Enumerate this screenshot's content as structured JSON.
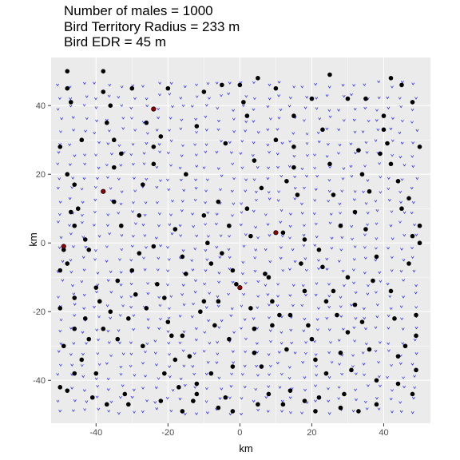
{
  "chart_data": {
    "type": "scatter",
    "title_lines": [
      "Number of males = 1000",
      "Bird Territory Radius = 233 m",
      "Bird EDR = 45 m"
    ],
    "xlabel": "km",
    "ylabel": "km",
    "xlim": [
      -52.5,
      53
    ],
    "ylim": [
      -52.5,
      54
    ],
    "xticks": [
      -40,
      -20,
      0,
      20,
      40
    ],
    "yticks": [
      -40,
      -20,
      0,
      20,
      40
    ],
    "xtick_labels": [
      "-40",
      "-20",
      "0",
      "20",
      "40"
    ],
    "ytick_labels": [
      "-40",
      "-20",
      "0",
      "20",
      "40"
    ],
    "grid": true,
    "background": "#ebebeb",
    "grid_color": "#ffffff",
    "colors": {
      "territories": "#000000",
      "detected": "#8b0000",
      "observers": "#0000ff"
    },
    "series": [
      {
        "marker": "filled-circle",
        "color": "#000000",
        "points": [
          [
            -48,
            50
          ],
          [
            -48,
            45
          ],
          [
            -47,
            41
          ],
          [
            -50,
            28
          ],
          [
            -48,
            20
          ],
          [
            -46,
            17
          ],
          [
            -47,
            9
          ],
          [
            -46,
            5
          ],
          [
            -49,
            -2
          ],
          [
            -50,
            -8
          ],
          [
            -48,
            -6
          ],
          [
            -46,
            -16
          ],
          [
            -50,
            -19
          ],
          [
            -49,
            -30
          ],
          [
            -50,
            -42
          ],
          [
            -48,
            -43
          ],
          [
            -46,
            -38
          ],
          [
            -44,
            -34
          ],
          [
            -43,
            -22
          ],
          [
            -42,
            -28
          ],
          [
            -43,
            1
          ],
          [
            -42,
            -2
          ],
          [
            -40,
            -13
          ],
          [
            -39,
            -17
          ],
          [
            -40,
            -38
          ],
          [
            -38,
            -25
          ],
          [
            -37,
            -47
          ],
          [
            -38,
            15
          ],
          [
            -37,
            35
          ],
          [
            -36,
            40
          ],
          [
            -38,
            50
          ],
          [
            -38,
            44
          ],
          [
            -35,
            30
          ],
          [
            -35,
            22
          ],
          [
            -34,
            -11
          ],
          [
            -34,
            -28
          ],
          [
            -31,
            -22
          ],
          [
            -31,
            -47
          ],
          [
            -30,
            -8
          ],
          [
            -29,
            -15
          ],
          [
            -28,
            -3
          ],
          [
            -27,
            17
          ],
          [
            -27,
            -30
          ],
          [
            -26,
            35
          ],
          [
            -24,
            39
          ],
          [
            -24,
            28
          ],
          [
            -24,
            23
          ],
          [
            -24,
            -1
          ],
          [
            -23,
            -12
          ],
          [
            -21,
            -16
          ],
          [
            -21,
            -38
          ],
          [
            -20,
            -23
          ],
          [
            -19,
            -27
          ],
          [
            -18,
            -34
          ],
          [
            -17,
            -42
          ],
          [
            -16,
            -49
          ],
          [
            -15,
            20
          ],
          [
            -15,
            -9
          ],
          [
            -14,
            -33
          ],
          [
            -13,
            -46
          ],
          [
            -12,
            -41
          ],
          [
            -11,
            -20
          ],
          [
            -10,
            8
          ],
          [
            -10,
            -17
          ],
          [
            -9,
            0
          ],
          [
            -8,
            -38
          ],
          [
            -7,
            -24
          ],
          [
            -6,
            -48
          ],
          [
            -5,
            -3
          ],
          [
            -4,
            -45
          ],
          [
            -3,
            -28
          ],
          [
            -2,
            -36
          ],
          [
            -2,
            -8
          ],
          [
            -1,
            -12
          ],
          [
            0,
            46
          ],
          [
            1,
            41
          ],
          [
            2,
            37
          ],
          [
            2,
            10
          ],
          [
            3,
            -19
          ],
          [
            4,
            -32
          ],
          [
            5,
            -47
          ],
          [
            6,
            -36
          ],
          [
            6,
            16
          ],
          [
            7,
            -9
          ],
          [
            8,
            -10
          ],
          [
            9,
            -17
          ],
          [
            9,
            -24
          ],
          [
            10,
            30
          ],
          [
            11,
            -21
          ],
          [
            12,
            -47
          ],
          [
            13,
            -31
          ],
          [
            14,
            -43
          ],
          [
            15,
            37
          ],
          [
            15,
            28
          ],
          [
            15,
            22
          ],
          [
            16,
            14
          ],
          [
            17,
            -6
          ],
          [
            18,
            -14
          ],
          [
            19,
            -24
          ],
          [
            20,
            -28
          ],
          [
            21,
            -34
          ],
          [
            21,
            -49
          ],
          [
            22,
            -45
          ],
          [
            23,
            -7
          ],
          [
            24,
            -38
          ],
          [
            25,
            49
          ],
          [
            25,
            23
          ],
          [
            26,
            14
          ],
          [
            27,
            -21
          ],
          [
            28,
            -32
          ],
          [
            29,
            -44
          ],
          [
            30,
            -26
          ],
          [
            31,
            -37
          ],
          [
            32,
            -18
          ],
          [
            33,
            -49
          ],
          [
            34,
            20
          ],
          [
            35,
            4
          ],
          [
            36,
            -31
          ],
          [
            37,
            -11
          ],
          [
            38,
            -40
          ],
          [
            39,
            26
          ],
          [
            40,
            37
          ],
          [
            40,
            33
          ],
          [
            41,
            29
          ],
          [
            42,
            -14
          ],
          [
            43,
            -22
          ],
          [
            44,
            -41
          ],
          [
            45,
            46
          ],
          [
            45,
            10
          ],
          [
            46,
            -30
          ],
          [
            47,
            13
          ],
          [
            47,
            -6
          ],
          [
            48,
            41
          ],
          [
            48,
            2
          ],
          [
            49,
            -27
          ],
          [
            49,
            -21
          ],
          [
            50,
            28
          ],
          [
            50,
            5
          ],
          [
            50,
            0
          ],
          [
            49,
            -37
          ],
          [
            -30,
            45
          ],
          [
            -20,
            45
          ],
          [
            -10,
            44
          ],
          [
            -5,
            46
          ],
          [
            5,
            48
          ],
          [
            10,
            45
          ],
          [
            20,
            42
          ],
          [
            30,
            42
          ],
          [
            35,
            42
          ],
          [
            42,
            48
          ],
          [
            -45,
            10
          ],
          [
            -35,
            12
          ],
          [
            -33,
            5
          ],
          [
            -28,
            8
          ],
          [
            -18,
            4
          ],
          [
            -16,
            -4
          ],
          [
            -8,
            -6
          ],
          [
            -6,
            12
          ],
          [
            -3,
            5
          ],
          [
            3,
            2
          ],
          [
            12,
            3
          ],
          [
            18,
            1
          ],
          [
            22,
            -2
          ],
          [
            28,
            5
          ],
          [
            32,
            9
          ],
          [
            36,
            15
          ],
          [
            44,
            18
          ],
          [
            38,
            -4
          ],
          [
            30,
            -10
          ],
          [
            26,
            -14
          ],
          [
            -41,
            -45
          ],
          [
            -32,
            -44
          ],
          [
            -22,
            -46
          ],
          [
            -12,
            -44
          ],
          [
            -2,
            -49
          ],
          [
            8,
            -44
          ],
          [
            18,
            -46
          ],
          [
            28,
            -48
          ],
          [
            38,
            -47
          ],
          [
            48,
            -44
          ],
          [
            -44,
            30
          ],
          [
            -33,
            26
          ],
          [
            -22,
            31
          ],
          [
            -12,
            34
          ],
          [
            -4,
            29
          ],
          [
            4,
            24
          ],
          [
            13,
            18
          ],
          [
            23,
            33
          ],
          [
            33,
            27
          ],
          [
            42,
            23
          ],
          [
            -46,
            -25
          ],
          [
            -36,
            -20
          ],
          [
            -26,
            -19
          ],
          [
            -16,
            -27
          ],
          [
            -6,
            -17
          ],
          [
            4,
            -25
          ],
          [
            14,
            -21
          ],
          [
            24,
            -17
          ],
          [
            34,
            -23
          ],
          [
            44,
            -33
          ]
        ]
      },
      {
        "marker": "filled-circle",
        "color": "#8b0000",
        "points": [
          [
            -24,
            39
          ],
          [
            -38,
            15
          ],
          [
            -49,
            -1
          ],
          [
            10,
            3
          ],
          [
            0,
            -13
          ]
        ]
      },
      {
        "marker": "v",
        "color": "#0000ff",
        "grid_start": [
          -50,
          -49
        ],
        "grid_step": [
          3.4,
          3.4
        ],
        "grid_count": [
          30,
          29
        ]
      }
    ]
  }
}
